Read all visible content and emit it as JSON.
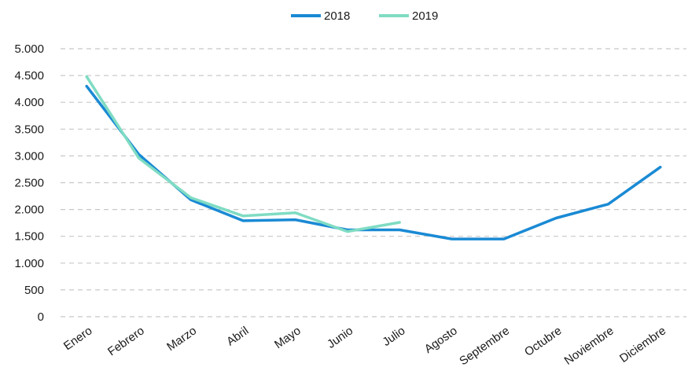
{
  "chart_data": {
    "type": "line",
    "title": "",
    "xlabel": "",
    "ylabel": "",
    "categories": [
      "Enero",
      "Febrero",
      "Marzo",
      "Abril",
      "Mayo",
      "Junio",
      "Julio",
      "Agosto",
      "Septembre",
      "Octubre",
      "Noviembre",
      "Diciembre"
    ],
    "ylim": [
      0,
      5000
    ],
    "yticks": [
      0,
      500,
      1000,
      1500,
      2000,
      2500,
      3000,
      3500,
      4000,
      4500,
      5000
    ],
    "ytick_labels": [
      "0",
      "500",
      "1.000",
      "1.500",
      "2.000",
      "2.500",
      "3.000",
      "3.500",
      "4.000",
      "4.500",
      "5.000"
    ],
    "grid": true,
    "legend_position": "top-center",
    "series": [
      {
        "name": "2018",
        "color": "#1a8ad4",
        "values": [
          4300,
          3030,
          2180,
          1790,
          1810,
          1620,
          1620,
          1450,
          1450,
          1840,
          2100,
          2790
        ]
      },
      {
        "name": "2019",
        "color": "#7fdcc3",
        "values": [
          4480,
          2960,
          2220,
          1880,
          1940,
          1590,
          1760,
          null,
          null,
          null,
          null,
          null
        ]
      }
    ]
  }
}
